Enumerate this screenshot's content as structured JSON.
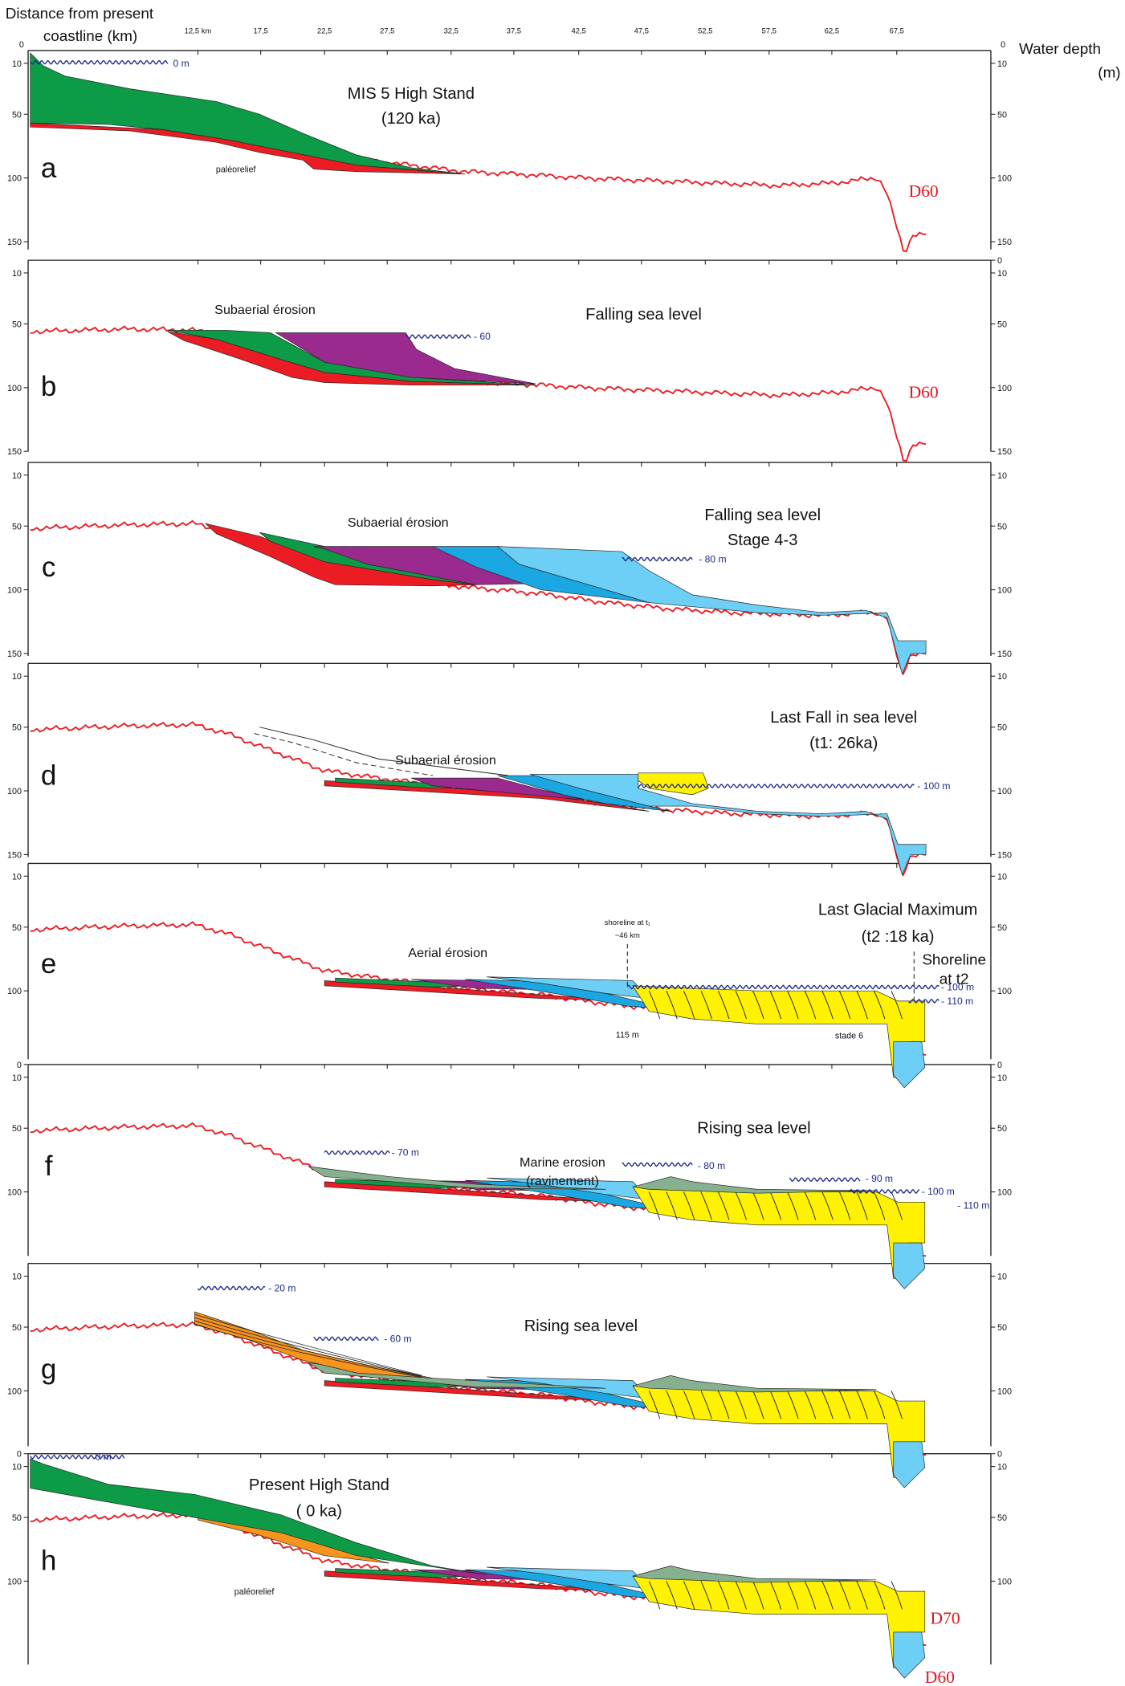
{
  "header": {
    "x_title_line1": "Distance from present",
    "x_title_line2": "coastline (km)",
    "top_zero_left": "0",
    "top_zero_right": "0",
    "y_title_line1": "Water depth",
    "y_title_line2": "(m)"
  },
  "x_ticks": [
    "12,5 km",
    "17,5",
    "22,5",
    "27,5",
    "32,5",
    "37,5",
    "42,5",
    "47,5",
    "52,5",
    "57,5",
    "62,5",
    "67,5"
  ],
  "panels": [
    {
      "letter": "a",
      "ticks_left": [
        "10",
        "50",
        "100",
        "150"
      ],
      "ticks_right": [
        "10",
        "50",
        "100",
        "150"
      ],
      "labels": [
        "MIS 5 High Stand",
        "(120 ka)",
        "0 m",
        "paléorelief",
        "D60"
      ]
    },
    {
      "letter": "b",
      "ticks_left": [
        "10",
        "50",
        "100",
        "150"
      ],
      "ticks_right": [
        "0",
        "10",
        "50",
        "100",
        "150"
      ],
      "labels": [
        "Subaerial érosion",
        "Falling sea level",
        "- 60",
        "D60"
      ]
    },
    {
      "letter": "c",
      "ticks_left": [
        "10",
        "50",
        "100",
        "150"
      ],
      "ticks_right": [
        "10",
        "50",
        "100",
        "150"
      ],
      "labels": [
        "Subaerial érosion",
        "Falling sea level",
        "Stage 4-3",
        "- 80 m"
      ]
    },
    {
      "letter": "d",
      "ticks_left": [
        "10",
        "50",
        "100",
        "150"
      ],
      "ticks_right": [
        "10",
        "50",
        "100",
        "150"
      ],
      "labels": [
        "Last Fall in sea level",
        "(t1: 26ka)",
        "Subaerial érosion",
        "- 100 m"
      ]
    },
    {
      "letter": "e",
      "ticks_left": [
        "10",
        "50",
        "100"
      ],
      "ticks_right": [
        "10",
        "50",
        "100"
      ],
      "labels": [
        "Last Glacial Maximum",
        "(t2 :18 ka)",
        "Aerial érosion",
        "shoreline at t₁",
        "~46 km",
        "Shoreline",
        "at t2",
        "- 100 m",
        "- 110 m",
        "115 m",
        "stade 6"
      ]
    },
    {
      "letter": "f",
      "ticks_left": [
        "0",
        "10",
        "50",
        "100"
      ],
      "ticks_right": [
        "0",
        "10",
        "50",
        "100"
      ],
      "labels": [
        "Rising sea level",
        "Marine erosion",
        "(ravinement)",
        "- 70 m",
        "- 80 m",
        "- 90 m",
        "- 100 m",
        "- 110 m"
      ]
    },
    {
      "letter": "g",
      "ticks_left": [
        "10",
        "50",
        "100"
      ],
      "ticks_right": [
        "10",
        "50",
        "100"
      ],
      "labels": [
        "Rising sea level",
        "- 20 m",
        "- 60 m"
      ]
    },
    {
      "letter": "h",
      "ticks_left": [
        "0",
        "10",
        "50",
        "100"
      ],
      "ticks_right": [
        "0",
        "10",
        "50",
        "100"
      ],
      "labels": [
        "Present  High Stand",
        "( 0 ka)",
        "paléorelief",
        "D70",
        "D60",
        "0 m"
      ]
    }
  ]
}
